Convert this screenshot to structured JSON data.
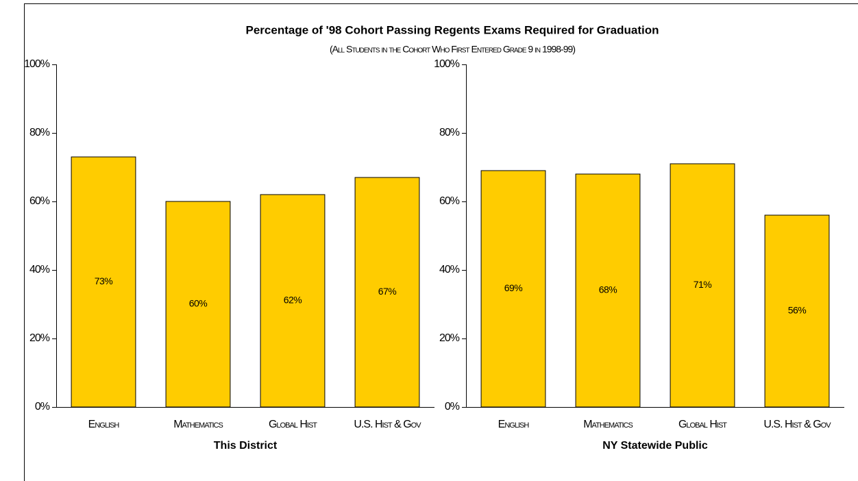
{
  "header": {
    "title": "Percentage of '98 Cohort Passing Regents Exams Required for Graduation",
    "subtitle": "(All Students in the Cohort Who First Entered Grade 9 in 1998-99)"
  },
  "chart_data": [
    {
      "type": "bar",
      "x_label": "This District",
      "categories": [
        "English",
        "Mathematics",
        "Global Hist",
        "U.S. Hist & Gov"
      ],
      "values": [
        73,
        60,
        62,
        67
      ],
      "value_labels": [
        "73%",
        "60%",
        "62%",
        "67%"
      ],
      "color": "#ffcc00",
      "ylim": [
        0,
        100
      ],
      "yticks": [
        {
          "value": 0,
          "label": "0%"
        },
        {
          "value": 20,
          "label": "20%"
        },
        {
          "value": 40,
          "label": "40%"
        },
        {
          "value": 60,
          "label": "60%"
        },
        {
          "value": 80,
          "label": "80%"
        },
        {
          "value": 100,
          "label": "100%"
        }
      ]
    },
    {
      "type": "bar",
      "x_label": "NY Statewide Public",
      "categories": [
        "English",
        "Mathematics",
        "Global Hist",
        "U.S. Hist & Gov"
      ],
      "values": [
        69,
        68,
        71,
        56
      ],
      "value_labels": [
        "69%",
        "68%",
        "71%",
        "56%"
      ],
      "color": "#ffcc00",
      "ylim": [
        0,
        100
      ],
      "yticks": [
        {
          "value": 0,
          "label": "0%"
        },
        {
          "value": 20,
          "label": "20%"
        },
        {
          "value": 40,
          "label": "40%"
        },
        {
          "value": 60,
          "label": "60%"
        },
        {
          "value": 80,
          "label": "80%"
        },
        {
          "value": 100,
          "label": "100%"
        }
      ]
    }
  ]
}
